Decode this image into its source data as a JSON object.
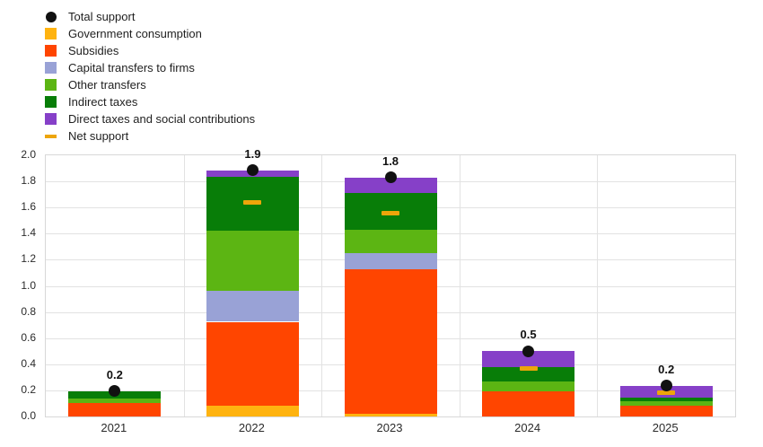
{
  "legend": {
    "items": [
      {
        "label": "Total support",
        "swatch": "circle",
        "color": "#111111"
      },
      {
        "label": "Government consumption",
        "swatch": "square",
        "color": "#ffb310"
      },
      {
        "label": "Subsidies",
        "swatch": "square",
        "color": "#ff4500"
      },
      {
        "label": "Capital transfers to firms",
        "swatch": "square",
        "color": "#99a2d6"
      },
      {
        "label": "Other transfers",
        "swatch": "square",
        "color": "#5cb513"
      },
      {
        "label": "Indirect taxes",
        "swatch": "square",
        "color": "#087d08"
      },
      {
        "label": "Direct taxes and social contributions",
        "swatch": "square",
        "color": "#8640c8"
      },
      {
        "label": "Net support",
        "swatch": "dash",
        "color": "#eda50a"
      }
    ]
  },
  "chart_data": {
    "type": "bar",
    "stacked": true,
    "title": "",
    "xlabel": "",
    "ylabel": "",
    "categories": [
      "2021",
      "2022",
      "2023",
      "2024",
      "2025"
    ],
    "series": [
      {
        "name": "Government consumption",
        "color": "#ffb310",
        "values": [
          0,
          0.085,
          0.02,
          0,
          0
        ]
      },
      {
        "name": "Subsidies",
        "color": "#ff4500",
        "values": [
          0.1,
          0.64,
          1.11,
          0.19,
          0.08
        ]
      },
      {
        "name": "Capital transfers to firms",
        "color": "#99a2d6",
        "values": [
          0,
          0.24,
          0.12,
          0,
          0
        ]
      },
      {
        "name": "Other transfers",
        "color": "#5cb513",
        "values": [
          0.035,
          0.46,
          0.18,
          0.075,
          0.035
        ]
      },
      {
        "name": "Indirect taxes",
        "color": "#087d08",
        "values": [
          0.06,
          0.41,
          0.28,
          0.11,
          0.03
        ]
      },
      {
        "name": "Direct taxes and social contributions",
        "color": "#8640c8",
        "values": [
          0,
          0.05,
          0.12,
          0.125,
          0.09
        ]
      }
    ],
    "markers": {
      "total_support": {
        "name": "Total support",
        "color": "#111111",
        "values": [
          0.195,
          1.885,
          1.83,
          0.5,
          0.235
        ],
        "labels": [
          "0.2",
          "1.9",
          "1.8",
          "0.5",
          "0.2"
        ]
      },
      "net_support": {
        "name": "Net support",
        "color": "#eda50a",
        "values": [
          null,
          1.64,
          1.56,
          0.37,
          0.18
        ]
      }
    },
    "ylim": [
      0,
      2.0
    ],
    "ytick_step": 0.2,
    "ytick_labels": [
      "0.0",
      "0.2",
      "0.4",
      "0.6",
      "0.8",
      "1.0",
      "1.2",
      "1.4",
      "1.6",
      "1.8",
      "2.0"
    ],
    "grid": true,
    "legend_position": "top-left"
  }
}
